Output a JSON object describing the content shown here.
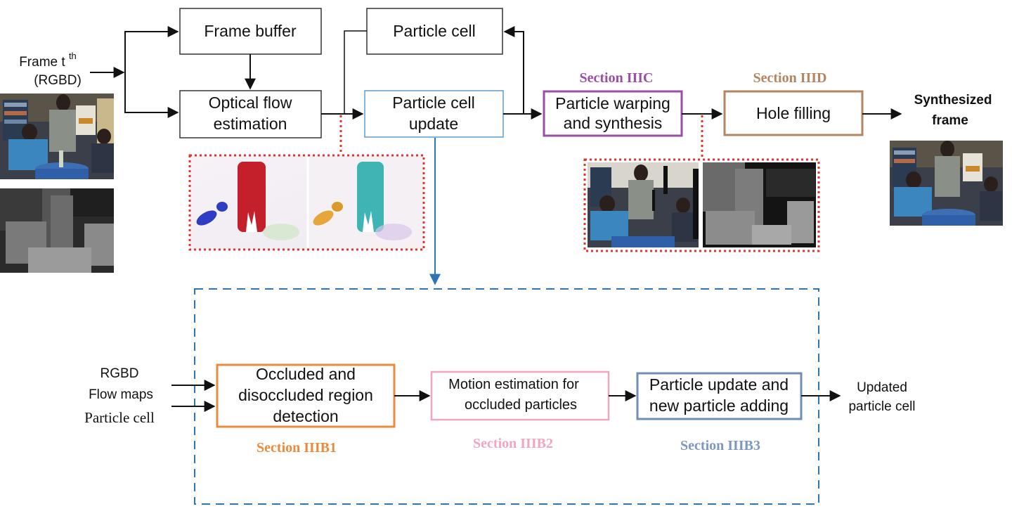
{
  "input": {
    "frame_label": "Frame t",
    "frame_sup": "th",
    "frame_type": "(RGBD)"
  },
  "boxes": {
    "frame_buffer": "Frame buffer",
    "optical_flow": [
      "Optical flow",
      "estimation"
    ],
    "particle_cell": "Particle cell",
    "particle_cell_update": [
      "Particle cell",
      "update"
    ],
    "particle_warping": [
      "Particle warping",
      "and synthesis"
    ],
    "hole_filling": "Hole filling"
  },
  "sections": {
    "iiic": {
      "label": "Section IIIC",
      "color": "#9a4ea6"
    },
    "iiid": {
      "label": "Section IIID",
      "color": "#b58461"
    },
    "iiib1": {
      "label": "Section IIIB1",
      "color": "#ec8a3c"
    },
    "iiib2": {
      "label": "Section IIIB2",
      "color": "#f2a6bd"
    },
    "iiib3": {
      "label": "Section IIIB3",
      "color": "#7e97c2"
    }
  },
  "output": [
    "Synthesized",
    "frame"
  ],
  "sub": {
    "inputs": [
      "RGBD",
      "Flow maps",
      "Particle cell"
    ],
    "occluded": [
      "Occluded and",
      "disoccluded region",
      "detection"
    ],
    "motion": [
      "Motion estimation for",
      "occluded particles"
    ],
    "update": [
      "Particle update and",
      "new particle adding"
    ],
    "output": [
      "Updated",
      "particle cell"
    ]
  },
  "colors": {
    "update_box": "#5b9bd5",
    "dashed_frame": "#2e75b6",
    "dotted_red": "#e8332a",
    "warping_box": "#9a4ea6",
    "hole_box": "#b58461",
    "occluded_box": "#ec8a3c",
    "motion_box": "#f2a6bd",
    "update_sub_box": "#6f8dbb"
  }
}
